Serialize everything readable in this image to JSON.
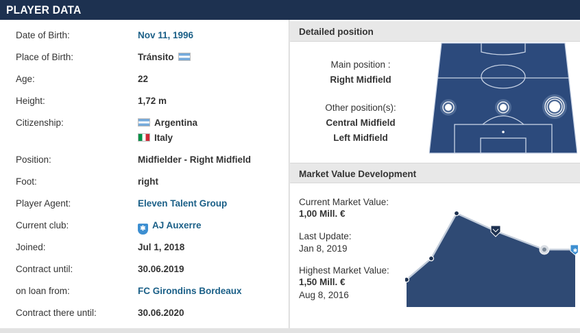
{
  "header": {
    "title": "PLAYER DATA"
  },
  "player": {
    "rows": [
      {
        "label": "Date of Birth:",
        "value": "Nov 11, 1996"
      },
      {
        "label": "Place of Birth:",
        "value": "Tránsito"
      },
      {
        "label": "Age:",
        "value": "22"
      },
      {
        "label": "Height:",
        "value": "1,72 m"
      },
      {
        "label": "Citizenship:",
        "value": "Argentina",
        "value2": "Italy"
      },
      {
        "label": "Position:",
        "value": "Midfielder - Right Midfield"
      },
      {
        "label": "Foot:",
        "value": "right"
      },
      {
        "label": "Player Agent:",
        "value": "Eleven Talent Group"
      },
      {
        "label": "Current club:",
        "value": "AJ Auxerre"
      },
      {
        "label": "Joined:",
        "value": "Jul 1, 2018"
      },
      {
        "label": "Contract until:",
        "value": "30.06.2019"
      },
      {
        "label": "on loan from:",
        "value": "FC Girondins Bordeaux"
      },
      {
        "label": "Contract there until:",
        "value": "30.06.2020"
      }
    ]
  },
  "position": {
    "title": "Detailed position",
    "main_label": "Main position :",
    "main_value": "Right Midfield",
    "other_label": "Other position(s):",
    "other_values": [
      "Central Midfield",
      "Left Midfield"
    ]
  },
  "market": {
    "title": "Market Value Development",
    "current_label": "Current Market Value:",
    "current_value": "1,00 Mill. €",
    "update_label": "Last Update:",
    "update_value": "Jan 8, 2019",
    "highest_label": "Highest Market Value:",
    "highest_value": "1,50 Mill. €",
    "highest_date": "Aug 8, 2016"
  },
  "colors": {
    "navy": "#1d3150",
    "link": "#1a5f87",
    "pitch": "#2c4a7c",
    "chart_fill": "#2f4a74"
  }
}
